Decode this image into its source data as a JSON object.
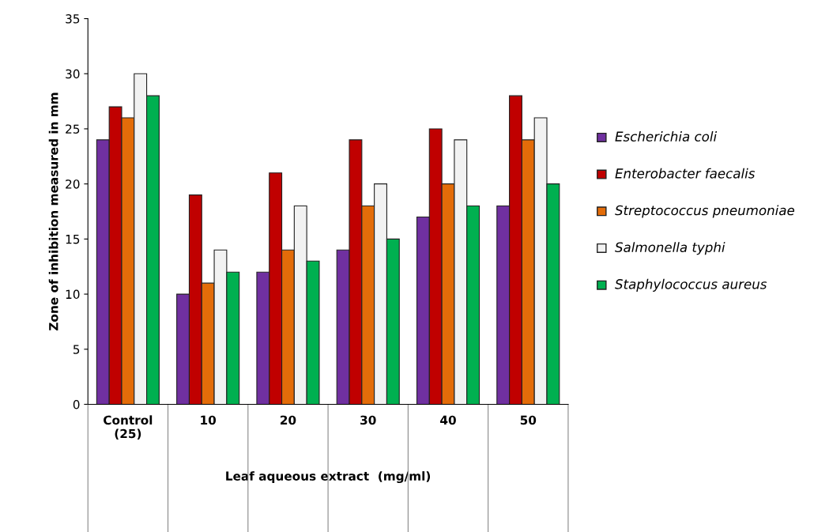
{
  "chart_data": {
    "type": "bar",
    "xlabel": "Leaf aqueous extract  (mg/ml)",
    "ylabel": "Zone of inhibition measured in mm",
    "categories": [
      "Control\n(25)",
      "10",
      "20",
      "30",
      "40",
      "50"
    ],
    "series": [
      {
        "name": "Escherichia coli",
        "color": "#7030a0",
        "values": [
          24,
          10,
          12,
          14,
          17,
          18
        ]
      },
      {
        "name": "Enterobacter faecalis",
        "color": "#c00000",
        "values": [
          27,
          19,
          21,
          24,
          25,
          28
        ]
      },
      {
        "name": "Streptococcus pneumoniae",
        "color": "#e36c09",
        "values": [
          26,
          11,
          14,
          18,
          20,
          24
        ]
      },
      {
        "name": "Salmonella typhi",
        "color": "#f2f2f2",
        "values": [
          30,
          14,
          18,
          20,
          24,
          26
        ]
      },
      {
        "name": "Staphylococcus aureus",
        "color": "#00b050",
        "values": [
          28,
          12,
          13,
          15,
          18,
          20
        ]
      }
    ],
    "ylim": [
      0,
      35
    ],
    "yticks": [
      0,
      5,
      10,
      15,
      20,
      25,
      30,
      35
    ],
    "grid": false,
    "legend": "right"
  }
}
